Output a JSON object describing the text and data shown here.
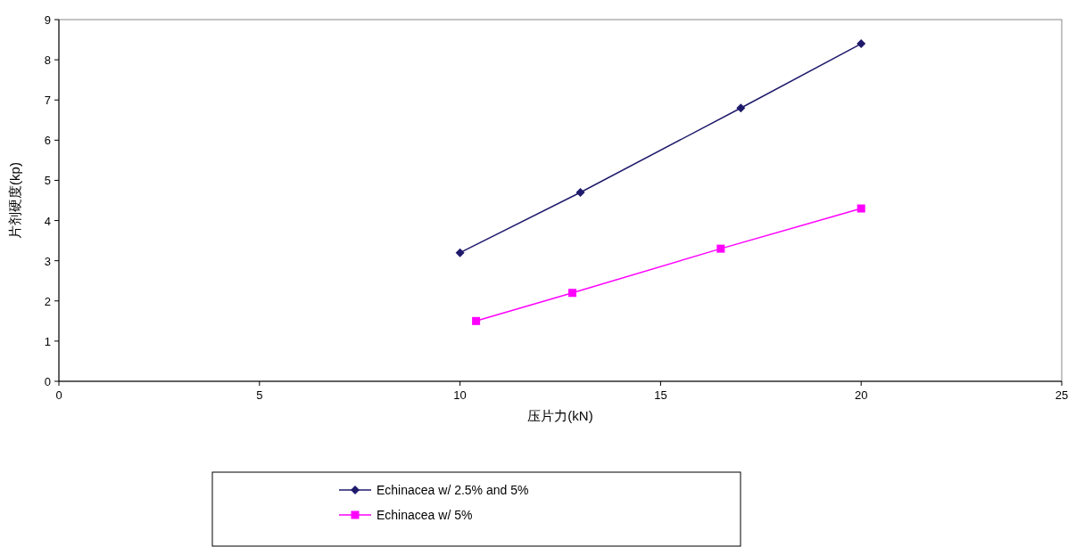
{
  "chart_data": {
    "type": "line",
    "xlabel": "压片力(kN)",
    "ylabel": "片剂硬度(kp)",
    "xlim": [
      0,
      25
    ],
    "xticks": [
      0,
      5,
      10,
      15,
      20,
      25
    ],
    "ylim": [
      0,
      9
    ],
    "yticks": [
      0,
      1,
      2,
      3,
      4,
      5,
      6,
      7,
      8,
      9
    ],
    "legend": "bottom",
    "series": [
      {
        "name": "Echinacea w/ 2.5% and 5%",
        "color": "#1f1a6b",
        "marker": "diamond",
        "x": [
          10,
          13,
          17,
          20
        ],
        "values": [
          3.2,
          4.7,
          6.8,
          8.4
        ]
      },
      {
        "name": "Echinacea w/ 5%",
        "color": "#ff00ff",
        "marker": "square",
        "x": [
          10.4,
          12.8,
          16.5,
          20
        ],
        "values": [
          1.5,
          2.2,
          3.3,
          4.3
        ]
      }
    ]
  }
}
